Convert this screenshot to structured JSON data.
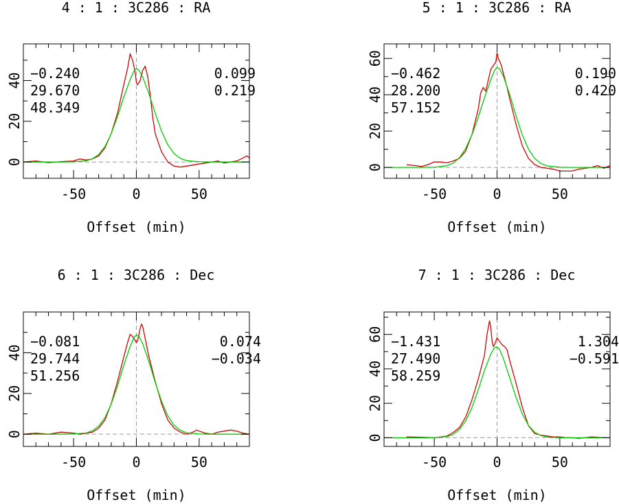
{
  "colors": {
    "data": "#cc0000",
    "fit": "#00cc00",
    "axes": "#000000",
    "guide": "#999999"
  },
  "chart_data": [
    {
      "type": "line",
      "title": "4 : 1 : 3C286 : RA",
      "xlabel": "Offset (min)",
      "ylabel": "",
      "xlim": [
        -90,
        90
      ],
      "ylim": [
        -8,
        58
      ],
      "xticks": [
        -50,
        0,
        50
      ],
      "yticks": [
        0,
        20,
        40
      ],
      "params_left": [
        "−0.240",
        "29.670",
        "48.349"
      ],
      "params_right": [
        "0.099",
        "0.219"
      ],
      "grid": false,
      "reference_lines": {
        "x": 0,
        "y": 0
      },
      "series": [
        {
          "kind": "data",
          "x": [
            -90,
            -80,
            -70,
            -60,
            -50,
            -45,
            -40,
            -35,
            -30,
            -25,
            -20,
            -15,
            -10,
            -7,
            -5,
            -3,
            -1,
            0,
            1,
            3,
            5,
            7,
            9,
            11,
            13,
            15,
            20,
            25,
            30,
            35,
            40,
            45,
            50,
            55,
            60,
            65,
            70,
            75,
            80,
            85,
            88,
            90
          ],
          "y": [
            0,
            0.5,
            -0.3,
            0.2,
            0.5,
            1.5,
            1,
            1.5,
            3,
            7,
            14,
            24,
            38,
            46,
            53,
            50,
            44,
            39,
            38,
            40,
            45,
            47,
            42,
            33,
            22,
            14,
            5,
            0,
            -2,
            -2.5,
            -2,
            -1.5,
            -1,
            -0.5,
            0,
            0.5,
            -0.5,
            0,
            0.5,
            2,
            3,
            2
          ]
        },
        {
          "kind": "fit",
          "x": [
            -90,
            -60,
            -50,
            -40,
            -35,
            -30,
            -25,
            -20,
            -15,
            -10,
            -5,
            -2,
            0,
            2,
            5,
            10,
            15,
            20,
            25,
            30,
            35,
            40,
            50,
            60,
            90
          ],
          "y": [
            0,
            0,
            0.1,
            0.6,
            1.6,
            3.7,
            7.6,
            13.9,
            22.4,
            31.9,
            40.5,
            44.6,
            45.8,
            45.1,
            41.8,
            33.5,
            24.0,
            15.2,
            8.5,
            4.1,
            1.8,
            0.7,
            0.1,
            0,
            0
          ]
        }
      ]
    },
    {
      "type": "line",
      "title": "5 : 1 : 3C286 : RA",
      "xlabel": "Offset (min)",
      "ylabel": "",
      "xlim": [
        -90,
        90
      ],
      "ylim": [
        -6,
        68
      ],
      "xticks": [
        -50,
        0,
        50
      ],
      "yticks": [
        0,
        20,
        40,
        60
      ],
      "params_left": [
        "−0.462",
        "28.200",
        "57.152"
      ],
      "params_right": [
        "0.190",
        "0.420"
      ],
      "grid": false,
      "reference_lines": {
        "x": 0,
        "y": 0
      },
      "series": [
        {
          "kind": "data",
          "x": [
            -72,
            -65,
            -60,
            -55,
            -50,
            -45,
            -40,
            -35,
            -30,
            -25,
            -20,
            -15,
            -13,
            -11,
            -9,
            -7,
            -5,
            -3,
            -1,
            0,
            1,
            3,
            5,
            8,
            10,
            15,
            20,
            25,
            30,
            35,
            40,
            45,
            50,
            55,
            60,
            65,
            70,
            75,
            80,
            85,
            90
          ],
          "y": [
            1.5,
            1,
            0.5,
            1.5,
            3,
            3,
            2.5,
            3.5,
            5,
            9,
            18,
            32,
            41,
            44,
            42,
            48,
            54,
            56,
            58,
            63,
            60,
            57,
            52,
            44,
            38,
            24,
            12,
            5,
            1.5,
            0,
            -0.5,
            -1,
            -2,
            -2,
            -2,
            -1,
            -0.5,
            0,
            1,
            -0.5,
            1
          ]
        },
        {
          "kind": "fit",
          "x": [
            -90,
            -60,
            -50,
            -40,
            -35,
            -30,
            -25,
            -20,
            -15,
            -10,
            -5,
            -2,
            0,
            2,
            5,
            10,
            15,
            20,
            25,
            30,
            35,
            40,
            50,
            60,
            90
          ],
          "y": [
            0,
            0,
            0.1,
            0.9,
            2.3,
            5.3,
            10.4,
            17.9,
            27.6,
            38.4,
            48.3,
            53.4,
            55.1,
            54.2,
            50.3,
            40.2,
            28.7,
            18.1,
            10.1,
            4.9,
            2.1,
            0.8,
            0.1,
            0,
            0
          ]
        }
      ]
    },
    {
      "type": "line",
      "title": "6 : 1 : 3C286 : Dec",
      "xlabel": "Offset (min)",
      "ylabel": "",
      "xlim": [
        -90,
        90
      ],
      "ylim": [
        -6,
        60
      ],
      "xticks": [
        -50,
        0,
        50
      ],
      "yticks": [
        0,
        20,
        40
      ],
      "params_left": [
        "−0.081",
        "29.744",
        "51.256"
      ],
      "params_right": [
        "0.074",
        "−0.034"
      ],
      "grid": false,
      "reference_lines": {
        "x": 0,
        "y": 0
      },
      "series": [
        {
          "kind": "data",
          "x": [
            -90,
            -80,
            -70,
            -60,
            -50,
            -45,
            -40,
            -35,
            -30,
            -25,
            -20,
            -15,
            -10,
            -7,
            -5,
            -3,
            -1,
            0,
            1,
            2,
            3,
            4,
            5,
            6,
            8,
            10,
            15,
            20,
            25,
            30,
            35,
            40,
            45,
            48,
            50,
            55,
            60,
            65,
            70,
            75,
            80,
            85,
            90
          ],
          "y": [
            0,
            0.5,
            0,
            1,
            0.5,
            0,
            0.5,
            1,
            3,
            7,
            15,
            26,
            38,
            45,
            49,
            48,
            46,
            45,
            46,
            49,
            52,
            54,
            53,
            50,
            44,
            38,
            26,
            15,
            7,
            3,
            1,
            0,
            1,
            2,
            1.5,
            0.5,
            0,
            1,
            1.5,
            2,
            1.5,
            0.5,
            0
          ]
        },
        {
          "kind": "fit",
          "x": [
            -90,
            -60,
            -50,
            -40,
            -35,
            -30,
            -25,
            -20,
            -15,
            -10,
            -5,
            -2,
            0,
            2,
            5,
            10,
            15,
            20,
            25,
            30,
            35,
            40,
            50,
            60,
            90
          ],
          "y": [
            0,
            0,
            0.1,
            0.6,
            1.7,
            4.0,
            8.1,
            14.8,
            23.8,
            33.9,
            43.0,
            47.4,
            48.7,
            48.0,
            44.5,
            35.6,
            25.5,
            16.2,
            9.0,
            4.4,
            1.9,
            0.7,
            0.1,
            0,
            0
          ]
        }
      ]
    },
    {
      "type": "line",
      "title": "7 : 1 : 3C286 : Dec",
      "xlabel": "Offset (min)",
      "ylabel": "",
      "xlim": [
        -90,
        90
      ],
      "ylim": [
        -5,
        73
      ],
      "xticks": [
        -50,
        0,
        50
      ],
      "yticks": [
        0,
        20,
        40,
        60
      ],
      "params_left": [
        "−1.431",
        "27.490",
        "58.259"
      ],
      "params_right": [
        "1.304",
        "−0.591"
      ],
      "grid": false,
      "reference_lines": {
        "x": 0,
        "y": 0
      },
      "series": [
        {
          "kind": "data",
          "x": [
            -72,
            -60,
            -50,
            -45,
            -40,
            -35,
            -30,
            -25,
            -20,
            -15,
            -10,
            -8,
            -6,
            -5,
            -4,
            -3,
            -2,
            0,
            2,
            4,
            6,
            8,
            10,
            15,
            20,
            25,
            30,
            35,
            40,
            45,
            50,
            55,
            60,
            65,
            70,
            75,
            80,
            85,
            90
          ],
          "y": [
            0.5,
            0.3,
            0,
            0.5,
            1,
            3,
            6,
            12,
            22,
            34,
            48,
            60,
            68,
            64,
            56,
            53,
            54,
            58,
            56,
            54,
            53,
            51,
            45,
            32,
            18,
            7,
            2.5,
            1.5,
            1,
            0.5,
            0.5,
            0,
            0,
            -0.3,
            0,
            0.5,
            0.3,
            0,
            0
          ]
        },
        {
          "kind": "fit",
          "x": [
            -90,
            -60,
            -50,
            -40,
            -35,
            -30,
            -25,
            -20,
            -15,
            -10,
            -5,
            -2,
            0,
            2,
            5,
            10,
            15,
            20,
            25,
            30,
            35,
            40,
            50,
            60,
            90
          ],
          "y": [
            0,
            0,
            0.1,
            0.7,
            1.9,
            4.8,
            9.8,
            17.4,
            27.8,
            39.1,
            48.6,
            52.3,
            52.7,
            51.2,
            46.1,
            35.0,
            23.7,
            14.0,
            7.2,
            3.2,
            1.3,
            0.5,
            0,
            0,
            0
          ]
        }
      ]
    }
  ]
}
